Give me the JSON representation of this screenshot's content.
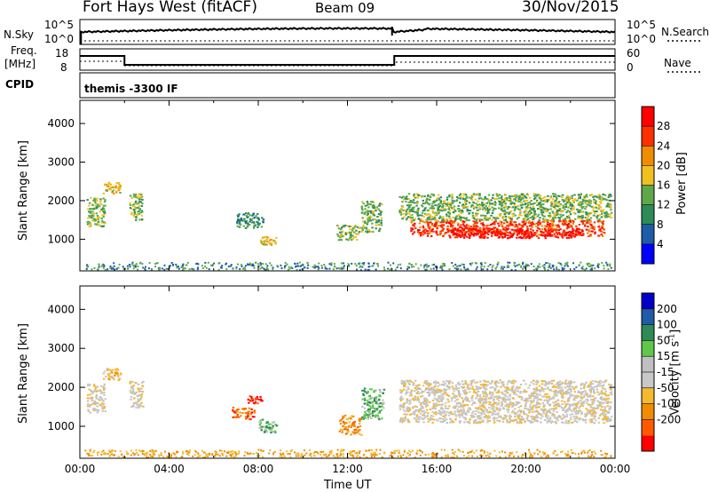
{
  "header": {
    "station": "Fort Hays West (fitACF)",
    "beam": "Beam 09",
    "date": "30/Nov/2015"
  },
  "panels": {
    "nsky_label": "N.Sky",
    "nsearch_label": "N.Search",
    "nsky_ticks": [
      "10^5",
      "10^0"
    ],
    "nsearch_ticks": [
      "10^5",
      "10^0"
    ],
    "freq_label_1": "Freq.",
    "freq_label_2": "[MHz]",
    "freq_ticks": [
      "18",
      "8"
    ],
    "nave_label": "Nave",
    "nave_ticks": [
      "60",
      "0"
    ],
    "cpid_label": "CPID",
    "cpid_value": "themis -3300 IF"
  },
  "chart_data": [
    {
      "type": "heatmap",
      "name": "Power",
      "ylabel": "Slant Range [km]",
      "yticks": [
        "4000",
        "3000",
        "2000",
        "1000"
      ],
      "ylim": [
        180,
        4600
      ],
      "colorbar_label": "Power [dB]",
      "colorbar_ticks": [
        "28",
        "24",
        "20",
        "16",
        "12",
        "8",
        "4"
      ],
      "colors": [
        "#0000ff",
        "#1e5ca8",
        "#2e8b57",
        "#5fa84a",
        "#f0c020",
        "#f08c00",
        "#ff3000",
        "#ff0000"
      ],
      "regions": [
        {
          "t0": 0.3,
          "t1": 1.1,
          "r0": 1350,
          "r1": 2100,
          "level": 3
        },
        {
          "t0": 1.0,
          "t1": 1.8,
          "r0": 2200,
          "r1": 2500,
          "level": 4
        },
        {
          "t0": 2.2,
          "t1": 2.8,
          "r0": 1500,
          "r1": 2200,
          "level": 3
        },
        {
          "t0": 7.0,
          "t1": 8.2,
          "r0": 1300,
          "r1": 1700,
          "level": 2
        },
        {
          "t0": 8.0,
          "t1": 8.8,
          "r0": 850,
          "r1": 1100,
          "level": 4
        },
        {
          "t0": 11.5,
          "t1": 12.5,
          "r0": 1000,
          "r1": 1400,
          "level": 3
        },
        {
          "t0": 12.6,
          "t1": 13.5,
          "r0": 1200,
          "r1": 2000,
          "level": 3
        },
        {
          "t0": 14.3,
          "t1": 23.8,
          "r0": 1500,
          "r1": 2200,
          "level": 3
        },
        {
          "t0": 14.8,
          "t1": 23.5,
          "r0": 1100,
          "r1": 1500,
          "level": 6
        },
        {
          "t0": 16.5,
          "t1": 22.5,
          "r0": 1050,
          "r1": 1300,
          "level": 7
        }
      ]
    },
    {
      "type": "heatmap",
      "name": "Velocity",
      "ylabel": "Slant Range [km]",
      "yticks": [
        "4000",
        "3000",
        "2000",
        "1000"
      ],
      "ylim": [
        180,
        4600
      ],
      "colorbar_label": "Velocity [m s",
      "colorbar_unit_sup": "-1",
      "colorbar_unit_end": "]",
      "colorbar_ticks": [
        "200",
        "100",
        "50",
        "15",
        "-15",
        "-50",
        "-100",
        "-200"
      ],
      "colors": [
        "#ff0000",
        "#ff5a00",
        "#f08c00",
        "#f5b830",
        "#c8c8c8",
        "#c0c0c0",
        "#5fc84a",
        "#2e8b57",
        "#1e5ca8",
        "#0000c8"
      ],
      "regions": [
        {
          "t0": 0.3,
          "t1": 1.1,
          "r0": 1350,
          "r1": 2100,
          "level": 4
        },
        {
          "t0": 1.0,
          "t1": 1.8,
          "r0": 2200,
          "r1": 2500,
          "level": 3
        },
        {
          "t0": 2.2,
          "t1": 2.8,
          "r0": 1500,
          "r1": 2200,
          "level": 4
        },
        {
          "t0": 6.8,
          "t1": 7.8,
          "r0": 1200,
          "r1": 1500,
          "level": 1
        },
        {
          "t0": 7.5,
          "t1": 8.2,
          "r0": 1600,
          "r1": 1800,
          "level": 0
        },
        {
          "t0": 8.0,
          "t1": 8.8,
          "r0": 850,
          "r1": 1200,
          "level": 6
        },
        {
          "t0": 11.6,
          "t1": 12.6,
          "r0": 800,
          "r1": 1300,
          "level": 2
        },
        {
          "t0": 12.6,
          "t1": 13.6,
          "r0": 1200,
          "r1": 2000,
          "level": 6
        },
        {
          "t0": 14.3,
          "t1": 23.8,
          "r0": 1100,
          "r1": 2200,
          "level": 4
        }
      ]
    }
  ],
  "xaxis": {
    "ticks": [
      "00:00",
      "04:00",
      "08:00",
      "12:00",
      "16:00",
      "20:00",
      "00:00"
    ],
    "label": "Time UT"
  }
}
